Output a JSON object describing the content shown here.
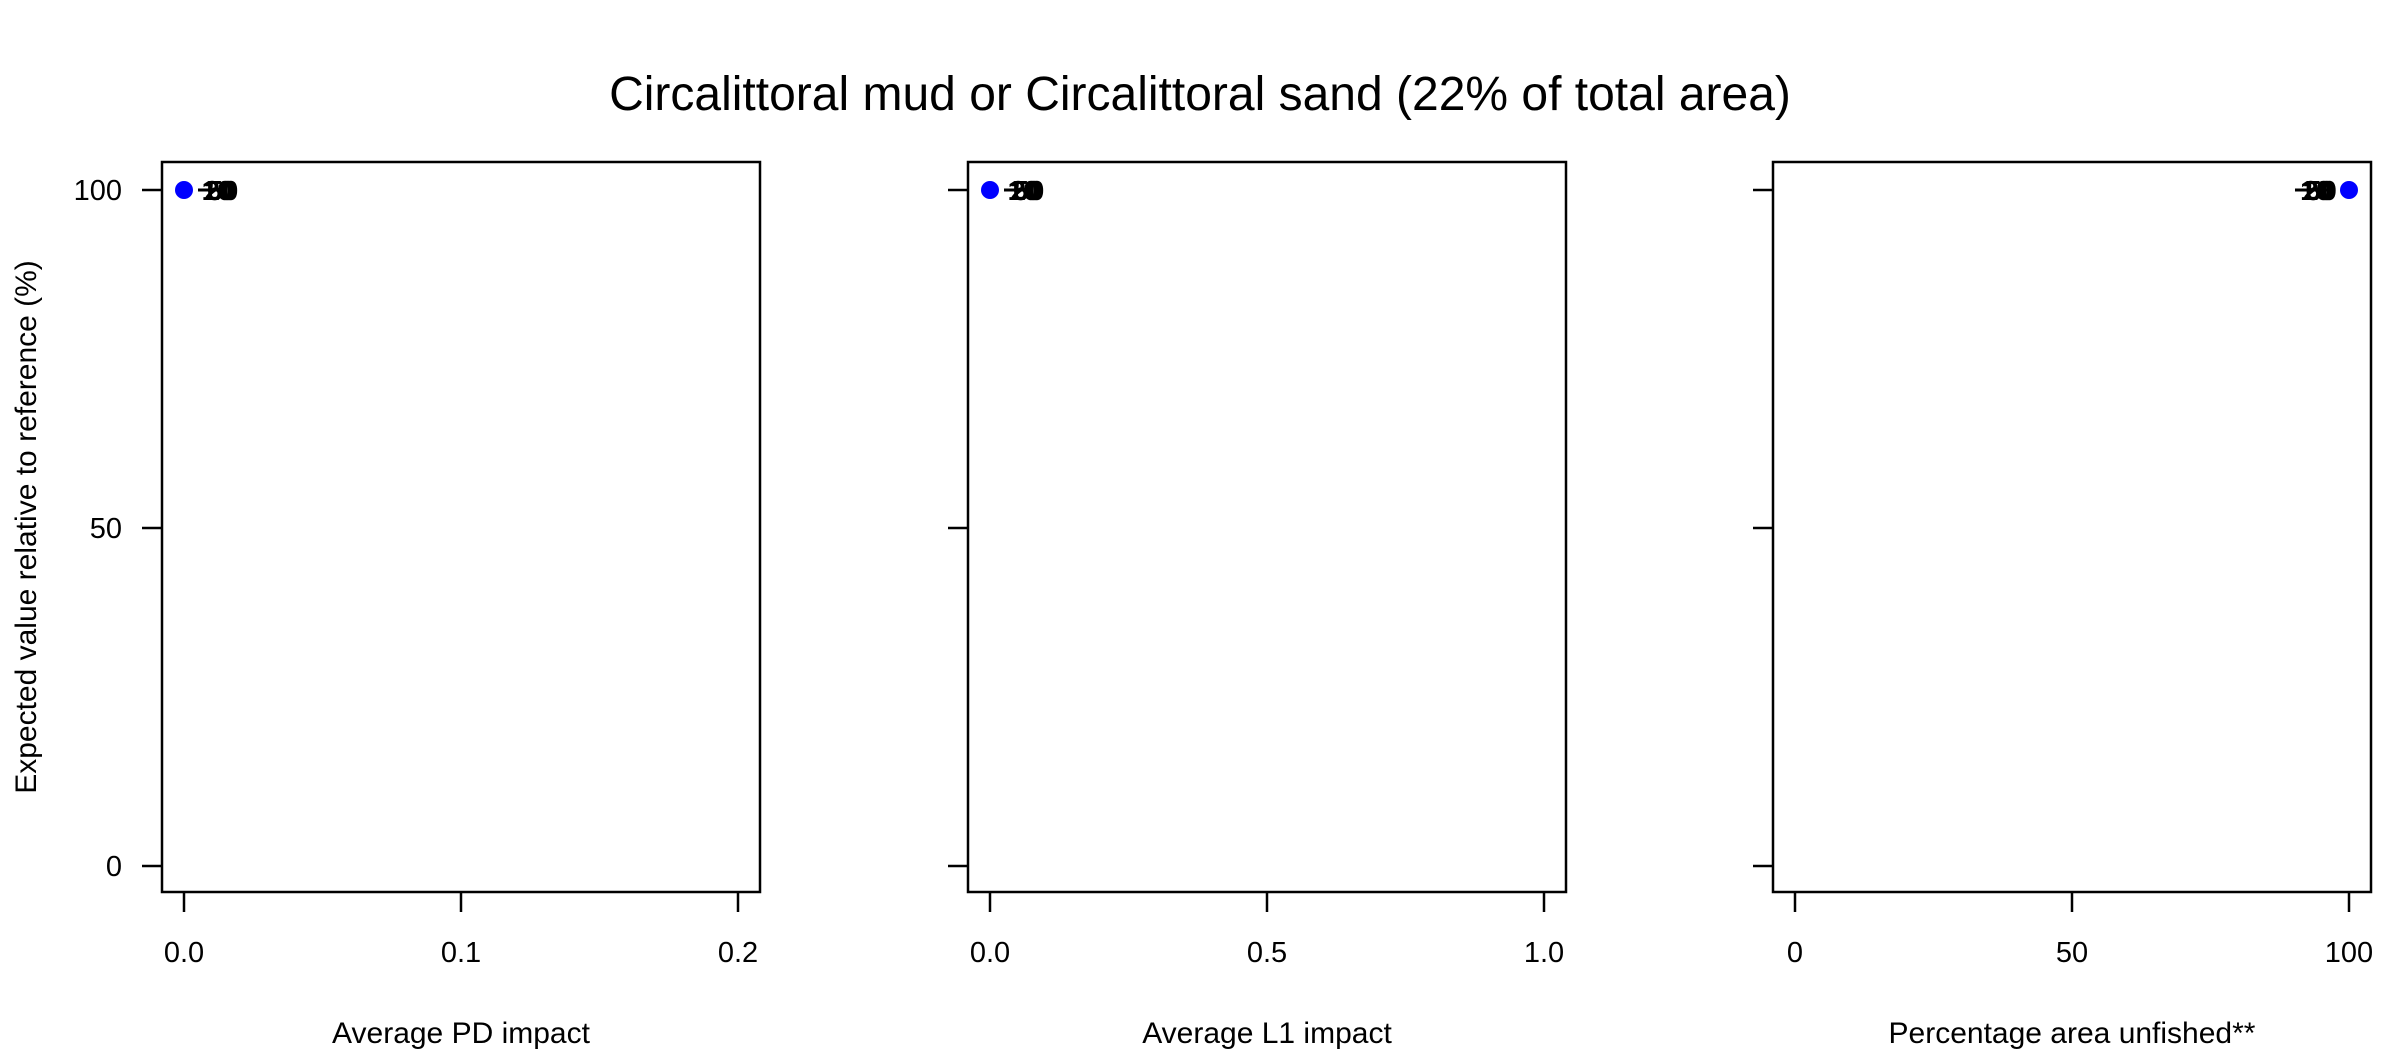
{
  "title": "Circalittoral mud or Circalittoral sand (22% of total area)",
  "ylabel": "Expected value relative to reference (%)",
  "colors": {
    "reference_point": "#0000ff",
    "axes": "#000000"
  },
  "chart_data": [
    {
      "type": "scatter",
      "xlabel": "Average PD impact",
      "x_ticks": [
        "0.0",
        "0.1",
        "0.2"
      ],
      "y_ticks": [
        "0",
        "50",
        "100"
      ],
      "xlim": [
        0,
        0.2
      ],
      "ylim": [
        0,
        100
      ],
      "grid": false,
      "reference_point": {
        "x": 0.0,
        "y": 100
      },
      "series": [
        {
          "labels": [
            "5",
            "10",
            "20",
            "50"
          ],
          "x": [
            0.011,
            0.012,
            0.013,
            0.014
          ],
          "y": [
            100,
            100,
            100,
            100
          ]
        }
      ]
    },
    {
      "type": "scatter",
      "xlabel": "Average L1 impact",
      "x_ticks": [
        "0.0",
        "0.5",
        "1.0"
      ],
      "y_ticks": [
        "0",
        "50",
        "100"
      ],
      "xlim": [
        0,
        1
      ],
      "ylim": [
        0,
        100
      ],
      "grid": false,
      "reference_point": {
        "x": 0.0,
        "y": 100
      },
      "series": [
        {
          "labels": [
            "5",
            "10",
            "20",
            "50"
          ],
          "x": [
            0.055,
            0.06,
            0.065,
            0.07
          ],
          "y": [
            100,
            100,
            100,
            100
          ]
        }
      ]
    },
    {
      "type": "scatter",
      "xlabel": "Percentage area unfished**",
      "x_ticks": [
        "0",
        "50",
        "100"
      ],
      "y_ticks": [
        "0",
        "50",
        "100"
      ],
      "xlim": [
        0,
        100
      ],
      "ylim": [
        0,
        100
      ],
      "grid": false,
      "reference_point": {
        "x": 100,
        "y": 100
      },
      "series": [
        {
          "labels": [
            "5",
            "10",
            "20",
            "50"
          ],
          "x": [
            93.5,
            94.0,
            94.5,
            95.0
          ],
          "y": [
            100,
            100,
            100,
            100
          ]
        }
      ]
    }
  ]
}
